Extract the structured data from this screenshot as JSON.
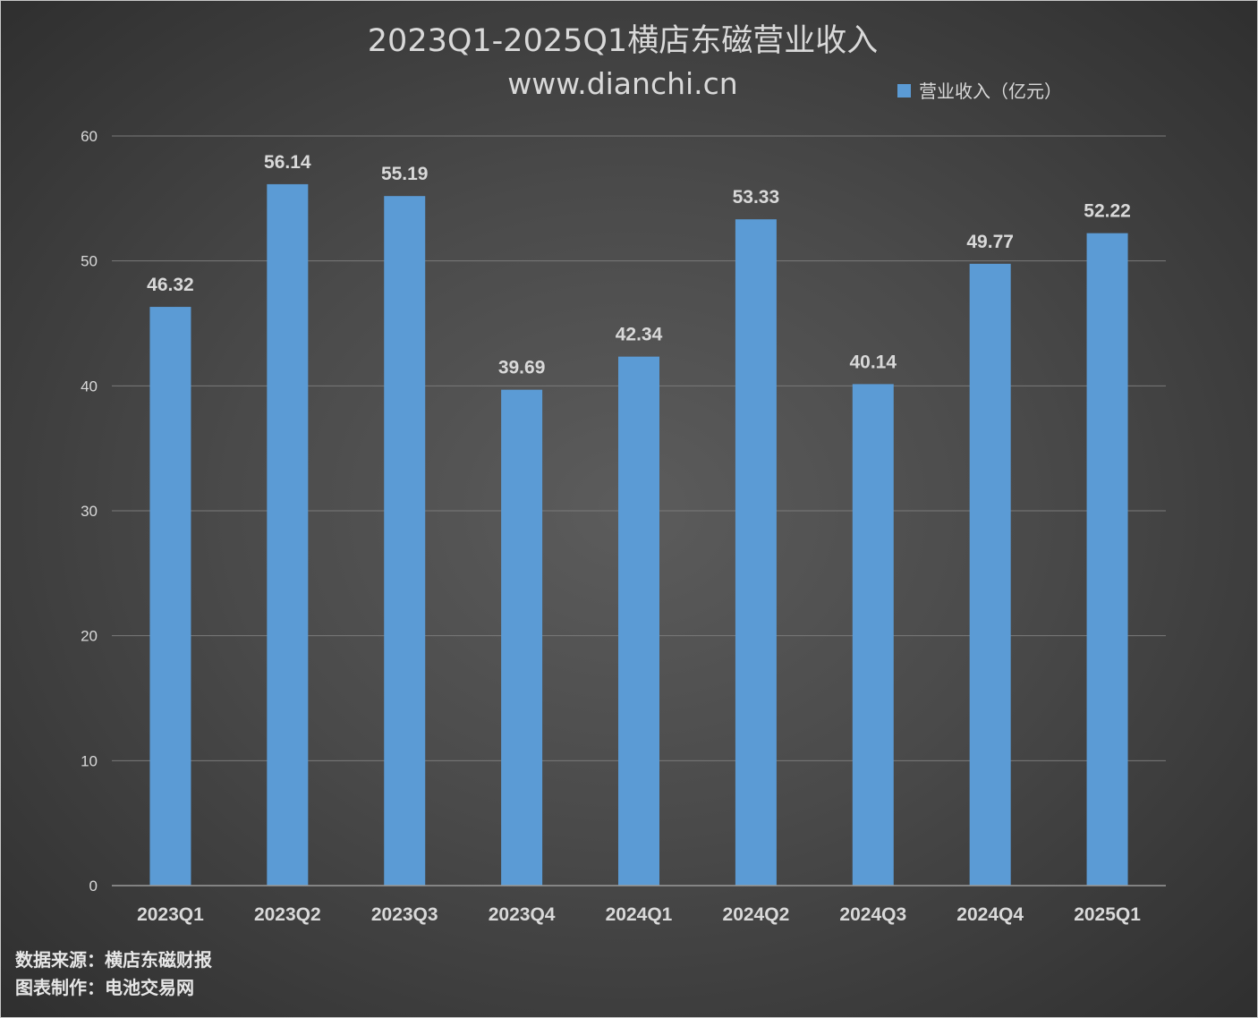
{
  "chart_data": {
    "type": "bar",
    "title": "2023Q1-2025Q1横店东磁营业收入",
    "subtitle": "www.dianchi.cn",
    "categories": [
      "2023Q1",
      "2023Q2",
      "2023Q3",
      "2023Q4",
      "2024Q1",
      "2024Q2",
      "2024Q3",
      "2024Q4",
      "2025Q1"
    ],
    "series": [
      {
        "name": "营业收入（亿元）",
        "values": [
          46.32,
          56.14,
          55.19,
          39.69,
          42.34,
          53.33,
          40.14,
          49.77,
          52.22
        ],
        "color": "#5b9bd5"
      }
    ],
    "y_ticks": [
      0,
      10,
      20,
      30,
      40,
      50,
      60
    ],
    "ylim": [
      0,
      60
    ],
    "grid": true,
    "legend_position": "top-right"
  },
  "footer": {
    "source": "数据来源：横店东磁财报",
    "credit": "图表制作：电池交易网"
  },
  "colors": {
    "bar": "#5b9bd5",
    "text": "#d9d9d9",
    "grid": "#7a7a7a"
  }
}
